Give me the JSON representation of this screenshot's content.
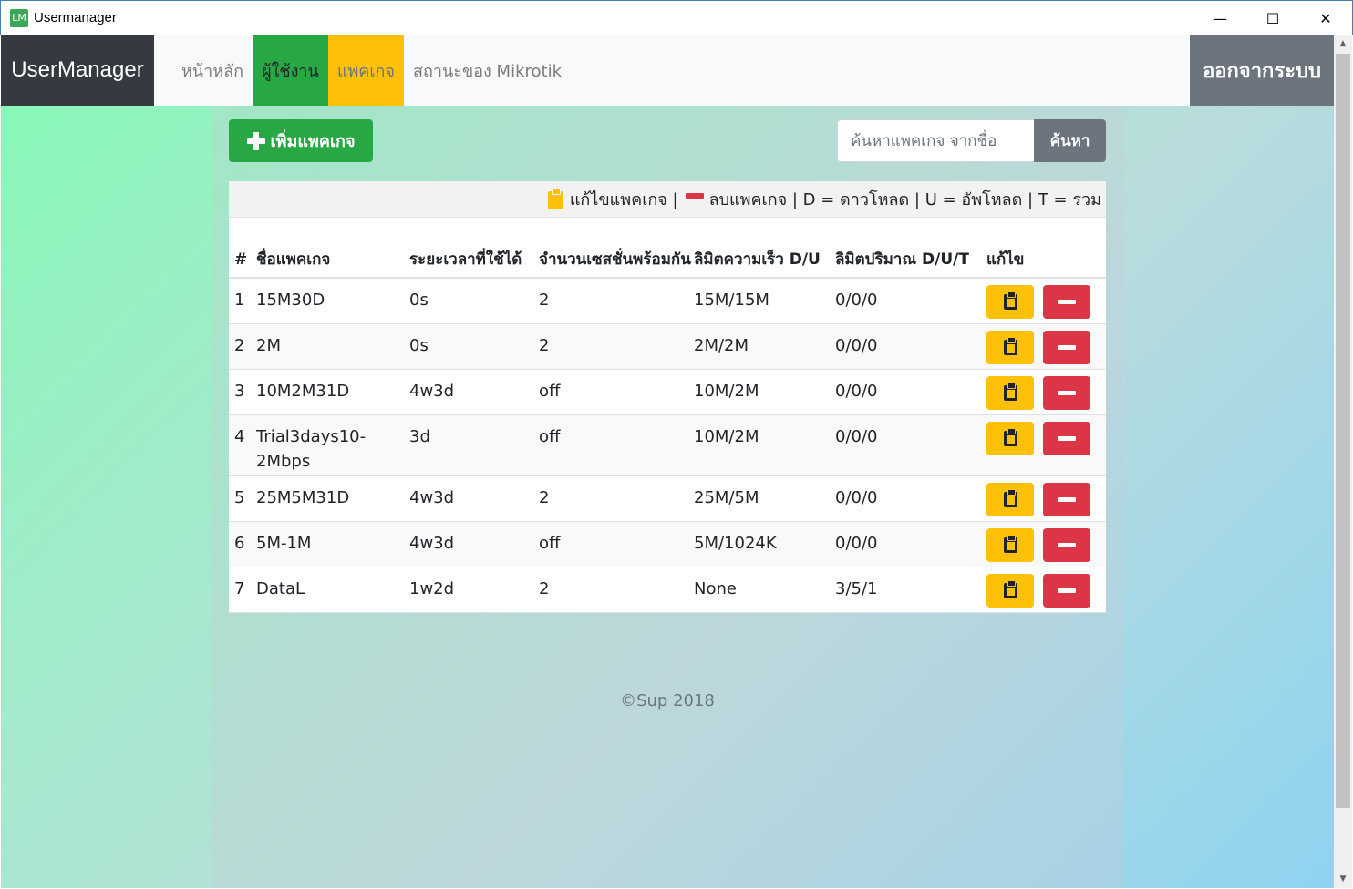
{
  "window": {
    "app_icon_text": "LM",
    "title": "Usermanager",
    "minimize": "—",
    "maximize": "☐",
    "close": "✕"
  },
  "navbar": {
    "brand": "UserManager",
    "items": [
      "หน้าหลัก",
      "ผู้ใช้งาน",
      "แพคเกจ",
      "สถานะของ Mikrotik"
    ],
    "logout": "ออกจากระบบ"
  },
  "toolbar": {
    "add_label": "เพิ่มแพคเกจ",
    "search_placeholder": "ค้นหาแพคเกจ จากชื่อ",
    "search_button": "ค้นหา"
  },
  "legend": {
    "edit_text": "แก้ไขแพคเกจ |",
    "rest_text": "ลบแพคเกจ | D = ดาวโหลด | U = อัพโหลด | T = รวม"
  },
  "table": {
    "headers": {
      "num": "#",
      "name": "ชื่อแพคเกจ",
      "time": "ระยะเวลาที่ใช้ได้",
      "sessions": "จำนวนเซสชั่นพร้อมกัน",
      "speed": "ลิมิตความเร็ว D/U",
      "quota": "ลิมิตปริมาณ D/U/T",
      "edit": "แก้ไข"
    },
    "rows": [
      {
        "num": "1",
        "name": "15M30D",
        "time": "0s",
        "sessions": "2",
        "speed": "15M/15M",
        "quota": "0/0/0"
      },
      {
        "num": "2",
        "name": "2M",
        "time": "0s",
        "sessions": "2",
        "speed": "2M/2M",
        "quota": "0/0/0"
      },
      {
        "num": "3",
        "name": "10M2M31D",
        "time": "4w3d",
        "sessions": "off",
        "speed": "10M/2M",
        "quota": "0/0/0"
      },
      {
        "num": "4",
        "name": "Trial3days10-2Mbps",
        "time": "3d",
        "sessions": "off",
        "speed": "10M/2M",
        "quota": "0/0/0"
      },
      {
        "num": "5",
        "name": "25M5M31D",
        "time": "4w3d",
        "sessions": "2",
        "speed": "25M/5M",
        "quota": "0/0/0"
      },
      {
        "num": "6",
        "name": "5M-1M",
        "time": "4w3d",
        "sessions": "off",
        "speed": "5M/1024K",
        "quota": "0/0/0"
      },
      {
        "num": "7",
        "name": "DataL",
        "time": "1w2d",
        "sessions": "2",
        "speed": "None",
        "quota": "3/5/1"
      }
    ]
  },
  "footer": "©Sup 2018",
  "colors": {
    "success": "#28a745",
    "warning": "#ffc107",
    "danger": "#dc3545",
    "secondary": "#6c757d",
    "dark": "#343a40"
  }
}
